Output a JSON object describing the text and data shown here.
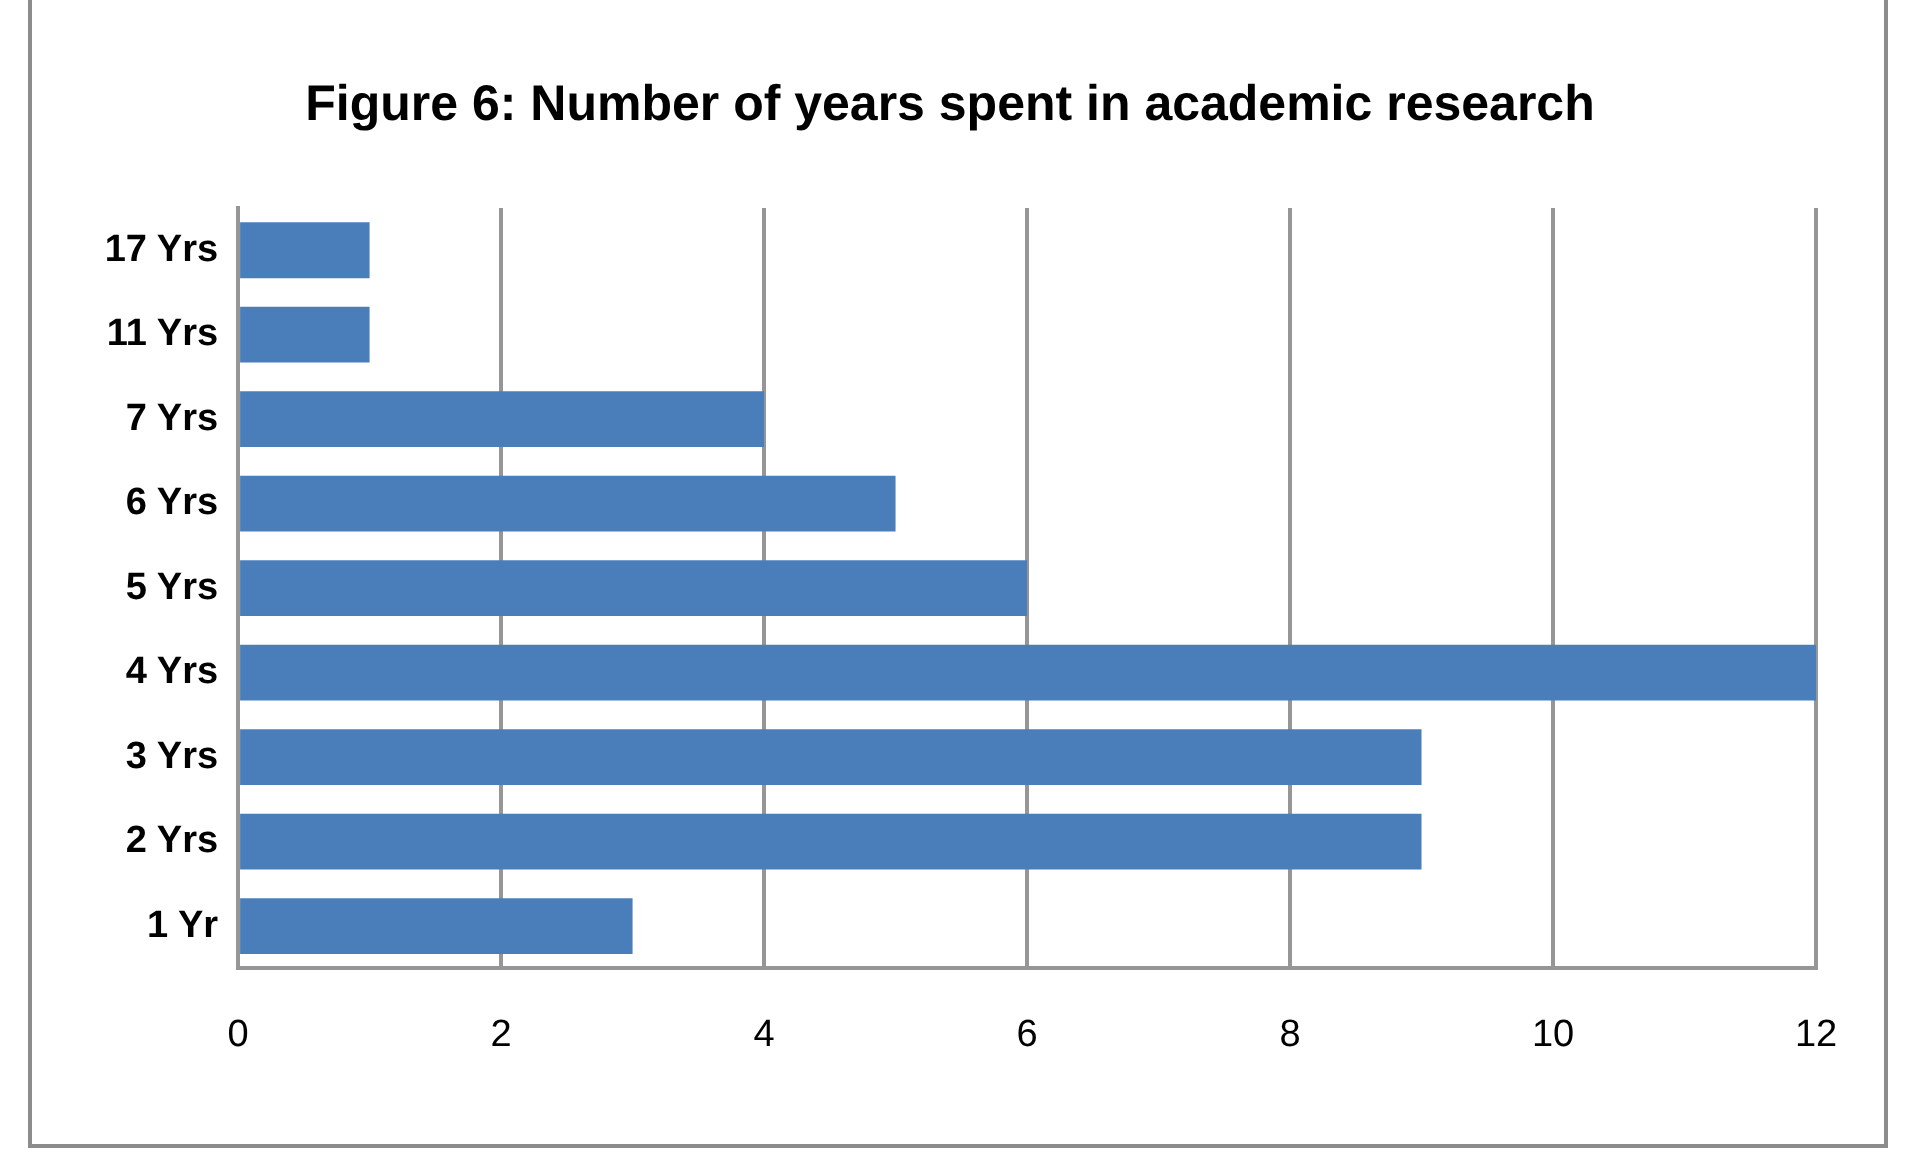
{
  "chart_data": {
    "type": "bar",
    "title": "Figure 6: Number of years spent in academic research",
    "orientation": "horizontal",
    "categories": [
      "17 Yrs",
      "11 Yrs",
      "7 Yrs",
      "6 Yrs",
      "5 Yrs",
      "4 Yrs",
      "3 Yrs",
      "2 Yrs",
      "1 Yr"
    ],
    "values": [
      1,
      1,
      4,
      5,
      6,
      12,
      9,
      9,
      3
    ],
    "color": "#4a7ebb",
    "xlim": [
      0,
      12
    ],
    "xticks": [
      0,
      2,
      4,
      6,
      8,
      10,
      12
    ],
    "grid": "x"
  }
}
